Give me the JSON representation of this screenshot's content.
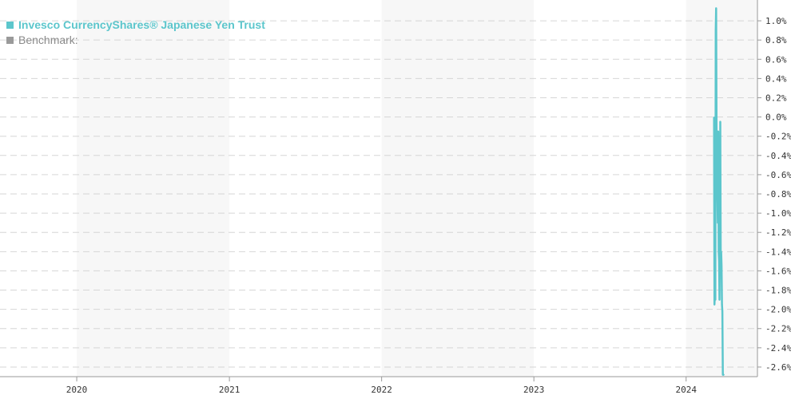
{
  "legend": {
    "fund_label": "Invesco CurrencyShares® Japanese Yen Trust",
    "benchmark_label": "Benchmark:"
  },
  "colors": {
    "fund": "#5cc6cc",
    "benchmark": "#9a9a9a",
    "band": "#f7f7f7",
    "grid": "#d6d6d6"
  },
  "chart_data": {
    "type": "line",
    "x_ticks": [
      "2020",
      "2021",
      "2022",
      "2023",
      "2024"
    ],
    "y_ticks": [
      "1.0%",
      "0.8%",
      "0.6%",
      "0.4%",
      "0.2%",
      "0.0%",
      "-0.2%",
      "-0.4%",
      "-0.6%",
      "-0.8%",
      "-1.0%",
      "-1.2%",
      "-1.4%",
      "-1.6%",
      "-1.8%",
      "-2.0%",
      "-2.2%",
      "-2.4%",
      "-2.6%"
    ],
    "ylim": [
      -2.7,
      1.15
    ],
    "xlim": [
      "2019-07-01",
      "2024-06-20"
    ],
    "grid": true,
    "legend_position": "top-left",
    "series": [
      {
        "name": "Invesco CurrencyShares® Japanese Yen Trust",
        "points": [
          [
            "2024-03-08",
            0.0
          ],
          [
            "2024-03-09",
            -1.95
          ],
          [
            "2024-03-10",
            -1.85
          ],
          [
            "2024-03-11",
            -1.9
          ],
          [
            "2024-03-12",
            0.9
          ],
          [
            "2024-03-13",
            1.13
          ],
          [
            "2024-03-14",
            -0.1
          ],
          [
            "2024-03-15",
            -0.55
          ],
          [
            "2024-03-16",
            -0.8
          ],
          [
            "2024-03-17",
            -1.1
          ],
          [
            "2024-03-18",
            -0.15
          ],
          [
            "2024-03-19",
            -1.4
          ],
          [
            "2024-03-20",
            -1.5
          ],
          [
            "2024-03-21",
            -1.9
          ],
          [
            "2024-03-22",
            -1.35
          ],
          [
            "2024-03-23",
            -0.05
          ],
          [
            "2024-03-24",
            -1.6
          ],
          [
            "2024-03-25",
            -1.4
          ],
          [
            "2024-03-26",
            -1.55
          ],
          [
            "2024-03-27",
            -1.95
          ],
          [
            "2024-03-28",
            -2.02
          ],
          [
            "2024-03-29",
            -2.68
          ],
          [
            "2024-04-01",
            -2.68
          ]
        ]
      }
    ]
  }
}
